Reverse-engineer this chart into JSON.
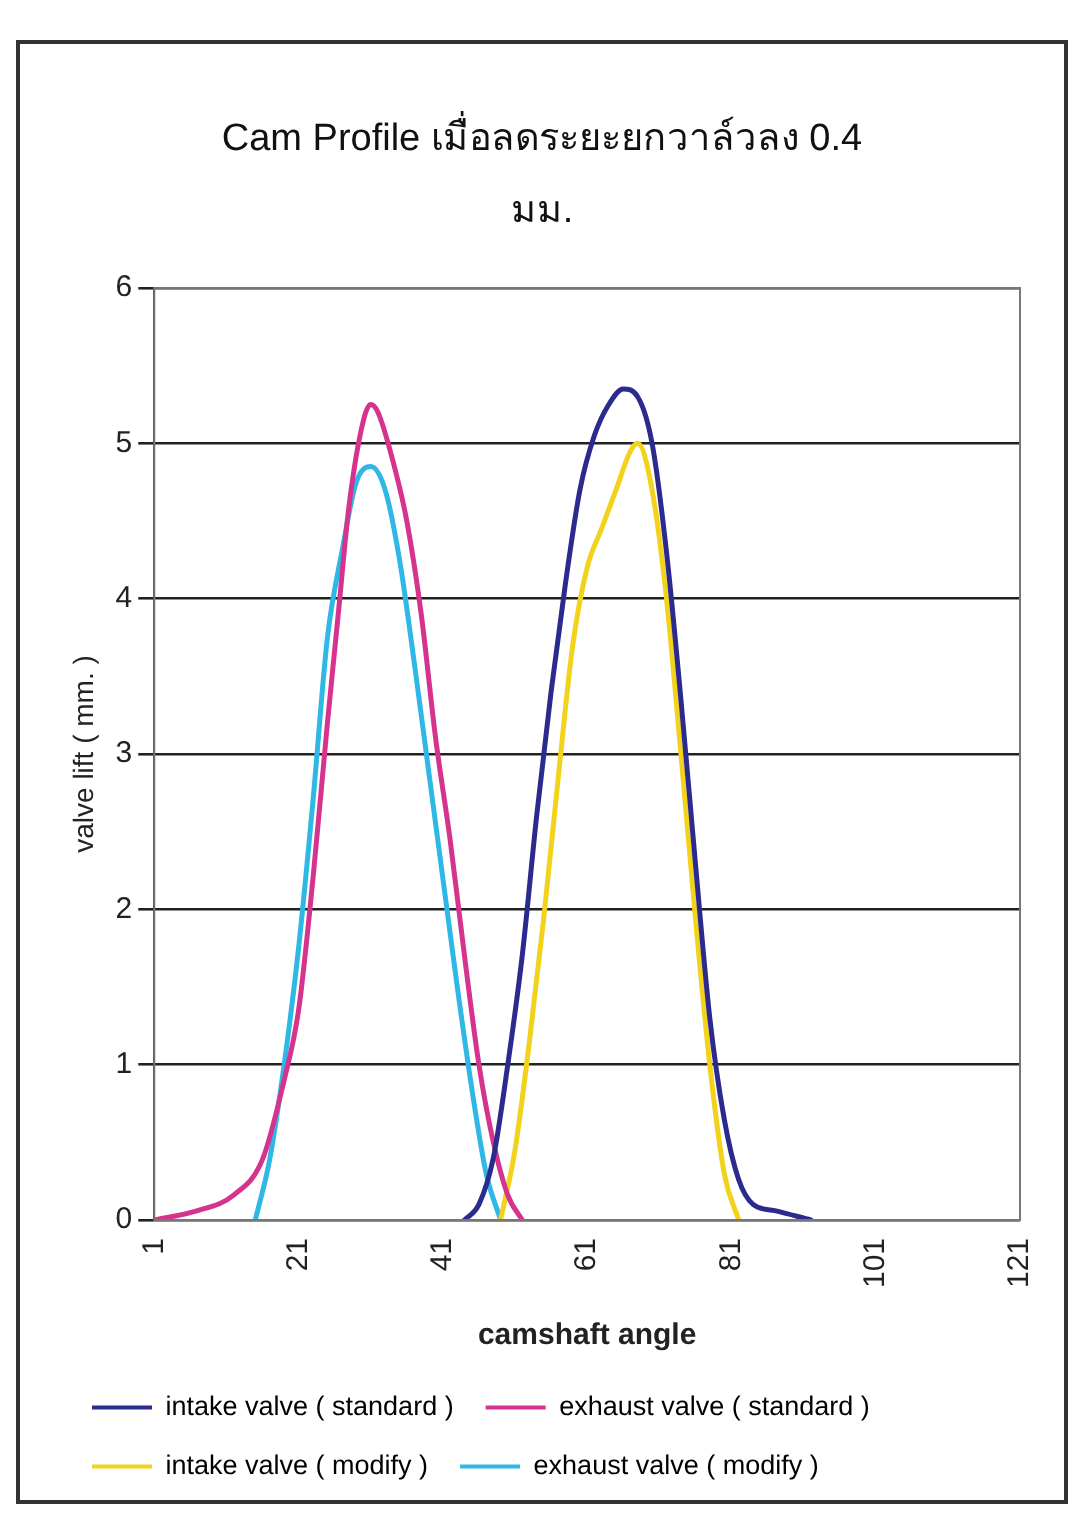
{
  "chart_data": {
    "type": "line",
    "title": "Cam Profile เมื่อลดระยะยกวาล์วลง 0.4 มม.",
    "xlabel": "camshaft angle",
    "ylabel": "valve lift ( mm. )",
    "xlim": [
      1,
      121
    ],
    "xticks": [
      1,
      21,
      41,
      61,
      81,
      101,
      121
    ],
    "ylim": [
      0,
      6
    ],
    "yticks": [
      0,
      1,
      2,
      3,
      4,
      5,
      6
    ],
    "grid": "y",
    "legend": "bottom",
    "marker": "none",
    "line_style": "solid",
    "series": [
      {
        "name": "intake valve ( standard )",
        "color": "#2b2b8f",
        "x": [
          44,
          46,
          48,
          50,
          52,
          54,
          56,
          58,
          60,
          62,
          64,
          66,
          68,
          70,
          72,
          74,
          76,
          78,
          80,
          82,
          84,
          87,
          92
        ],
        "values": [
          0,
          0.1,
          0.4,
          1,
          1.7,
          2.6,
          3.4,
          4.1,
          4.7,
          5.05,
          5.25,
          5.35,
          5.3,
          5,
          4.3,
          3.35,
          2.3,
          1.3,
          0.65,
          0.26,
          0.1,
          0.06,
          0
        ]
      },
      {
        "name": "exhaust valve ( standard )",
        "color": "#d6338f",
        "x": [
          1,
          7,
          12,
          16,
          19,
          21,
          23,
          25,
          26.5,
          28,
          30,
          31,
          32,
          34,
          36,
          38,
          40,
          42,
          44,
          46,
          48,
          50,
          52
        ],
        "values": [
          0,
          0.06,
          0.16,
          0.39,
          0.9,
          1.35,
          2.2,
          3.2,
          3.9,
          4.6,
          5.15,
          5.25,
          5.2,
          4.9,
          4.5,
          3.9,
          3.1,
          2.45,
          1.7,
          1,
          0.5,
          0.16,
          0
        ]
      },
      {
        "name": "intake valve ( modify )",
        "color": "#f2d21b",
        "x": [
          49,
          51,
          53,
          55,
          57,
          59,
          61,
          63,
          65,
          67,
          68,
          70,
          72,
          74,
          76,
          78,
          80,
          82
        ],
        "values": [
          0,
          0.45,
          1.15,
          1.95,
          2.85,
          3.7,
          4.2,
          4.45,
          4.7,
          4.95,
          5,
          4.7,
          4,
          3,
          1.95,
          1,
          0.3,
          0
        ]
      },
      {
        "name": "exhaust valve ( modify )",
        "color": "#2fb8e6",
        "x": [
          15,
          17,
          19,
          21,
          23,
          25,
          27,
          29,
          31,
          33,
          35,
          37,
          39,
          41,
          43,
          45,
          47,
          49
        ],
        "values": [
          0,
          0.39,
          1,
          1.75,
          2.7,
          3.75,
          4.3,
          4.75,
          4.85,
          4.7,
          4.25,
          3.6,
          2.9,
          2.2,
          1.5,
          0.85,
          0.3,
          0
        ]
      }
    ]
  }
}
